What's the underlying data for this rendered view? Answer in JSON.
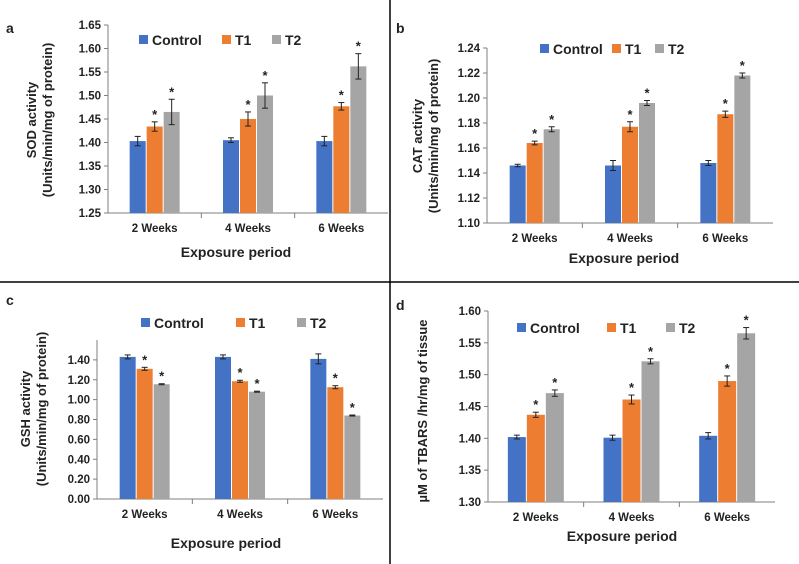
{
  "colors": {
    "Control": "#4472C4",
    "T1": "#ED7D31",
    "T2": "#A5A5A5"
  },
  "chart_data": [
    {
      "type": "bar",
      "letter": "a",
      "categories": [
        "2 Weeks",
        "4 Weeks",
        "6 Weeks"
      ],
      "series": [
        {
          "name": "Control",
          "values": [
            1.403,
            1.405,
            1.403
          ],
          "errors": [
            0.01,
            0.005,
            0.01
          ],
          "sig": [
            "",
            "",
            ""
          ]
        },
        {
          "name": "T1",
          "values": [
            1.434,
            1.45,
            1.477
          ],
          "errors": [
            0.01,
            0.015,
            0.008
          ],
          "sig": [
            "*",
            "*",
            "*"
          ]
        },
        {
          "name": "T2",
          "values": [
            1.465,
            1.5,
            1.562
          ],
          "errors": [
            0.027,
            0.027,
            0.027
          ],
          "sig": [
            "*",
            "*",
            "*"
          ]
        }
      ],
      "ylim": [
        1.25,
        1.65
      ],
      "yticks": [
        1.25,
        1.3,
        1.35,
        1.4,
        1.45,
        1.5,
        1.55,
        1.6,
        1.65
      ],
      "ytick_labels": [
        "1.25",
        "1.30",
        "1.35",
        "1.40",
        "1.45",
        "1.50",
        "1.55",
        "1.60",
        "1.65"
      ],
      "ylabel_line1": "SOD activity",
      "ylabel_line2": "(Units/min/mg of  protein)",
      "xlabel": "Exposure period",
      "legend": [
        "Control",
        "T1",
        "T2"
      ]
    },
    {
      "type": "bar",
      "letter": "b",
      "categories": [
        "2 Weeks",
        "4 Weeks",
        "6 Weeks"
      ],
      "series": [
        {
          "name": "Control",
          "values": [
            1.146,
            1.146,
            1.148
          ],
          "errors": [
            0.001,
            0.004,
            0.002
          ],
          "sig": [
            "",
            "",
            ""
          ]
        },
        {
          "name": "T1",
          "values": [
            1.164,
            1.177,
            1.187
          ],
          "errors": [
            0.0015,
            0.004,
            0.0025
          ],
          "sig": [
            "*",
            "*",
            "*"
          ]
        },
        {
          "name": "T2",
          "values": [
            1.175,
            1.196,
            1.218
          ],
          "errors": [
            0.002,
            0.002,
            0.002
          ],
          "sig": [
            "*",
            "*",
            "*"
          ]
        }
      ],
      "ylim": [
        1.1,
        1.24
      ],
      "yticks": [
        1.1,
        1.12,
        1.14,
        1.16,
        1.18,
        1.2,
        1.22,
        1.24
      ],
      "ytick_labels": [
        "1.10",
        "1.12",
        "1.14",
        "1.16",
        "1.18",
        "1.20",
        "1.22",
        "1.24"
      ],
      "ylabel_line1": "CAT activity",
      "ylabel_line2": "(Units/min/mg of protein)",
      "xlabel": "Exposure period",
      "legend": [
        "Control",
        "T1",
        "T2"
      ]
    },
    {
      "type": "bar",
      "letter": "c",
      "categories": [
        "2 Weeks",
        "4 Weeks",
        "6 Weeks"
      ],
      "series": [
        {
          "name": "Control",
          "values": [
            1.43,
            1.43,
            1.41
          ],
          "errors": [
            0.02,
            0.02,
            0.05
          ],
          "sig": [
            "",
            "",
            ""
          ]
        },
        {
          "name": "T1",
          "values": [
            1.31,
            1.185,
            1.125
          ],
          "errors": [
            0.015,
            0.01,
            0.015
          ],
          "sig": [
            "*",
            "*",
            "*"
          ]
        },
        {
          "name": "T2",
          "values": [
            1.155,
            1.08,
            0.84
          ],
          "errors": [
            0.005,
            0.005,
            0.005
          ],
          "sig": [
            "*",
            "*",
            "*"
          ]
        }
      ],
      "ylim": [
        0.0,
        1.6
      ],
      "yticks": [
        0.0,
        0.2,
        0.4,
        0.6,
        0.8,
        1.0,
        1.2,
        1.4
      ],
      "ytick_labels": [
        "0.00",
        "0.20",
        "0.40",
        "0.60",
        "0.80",
        "1.00",
        "1.20",
        "1.40"
      ],
      "ylabel_line1": "GSH activity",
      "ylabel_line2": "(Units/min/mg of  protein)",
      "xlabel": "Exposure period",
      "legend": [
        "Control",
        "T1",
        "T2"
      ]
    },
    {
      "type": "bar",
      "letter": "d",
      "categories": [
        "2 Weeks",
        "4 Weeks",
        "6 Weeks"
      ],
      "series": [
        {
          "name": "Control",
          "values": [
            1.402,
            1.401,
            1.404
          ],
          "errors": [
            0.003,
            0.004,
            0.005
          ],
          "sig": [
            "",
            "",
            ""
          ]
        },
        {
          "name": "T1",
          "values": [
            1.437,
            1.461,
            1.49
          ],
          "errors": [
            0.004,
            0.007,
            0.008
          ],
          "sig": [
            "*",
            "*",
            "*"
          ]
        },
        {
          "name": "T2",
          "values": [
            1.471,
            1.521,
            1.565
          ],
          "errors": [
            0.005,
            0.004,
            0.009
          ],
          "sig": [
            "*",
            "*",
            "*"
          ]
        }
      ],
      "ylim": [
        1.3,
        1.6
      ],
      "yticks": [
        1.3,
        1.35,
        1.4,
        1.45,
        1.5,
        1.55,
        1.6
      ],
      "ytick_labels": [
        "1.30",
        "1.35",
        "1.40",
        "1.45",
        "1.50",
        "1.55",
        "1.60"
      ],
      "ylabel_line1": "µM of TBARS /hr/mg of tissue",
      "ylabel_line2": "",
      "xlabel": "Exposure period",
      "legend": [
        "Control",
        "T1",
        "T2"
      ]
    }
  ]
}
